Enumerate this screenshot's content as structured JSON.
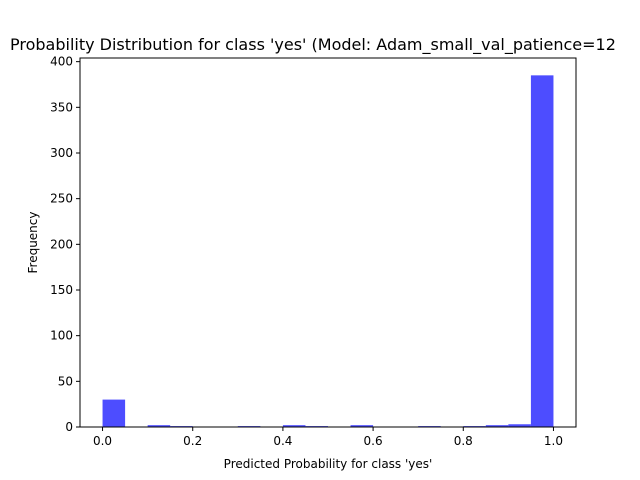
{
  "chart_data": {
    "type": "bar",
    "subtype": "histogram",
    "title": "Probability Distribution for class 'yes' (Model: Adam_small_val_patience=12",
    "xlabel": "Predicted Probability for class 'yes'",
    "ylabel": "Frequency",
    "xlim": [
      -0.05,
      1.05
    ],
    "ylim": [
      0,
      404
    ],
    "xticks": [
      0.0,
      0.2,
      0.4,
      0.6,
      0.8,
      1.0
    ],
    "xtick_labels": [
      "0.0",
      "0.2",
      "0.4",
      "0.6",
      "0.8",
      "1.0"
    ],
    "yticks": [
      0,
      50,
      100,
      150,
      200,
      250,
      300,
      350,
      400
    ],
    "ytick_labels": [
      "0",
      "50",
      "100",
      "150",
      "200",
      "250",
      "300",
      "350",
      "400"
    ],
    "bin_edges": [
      0.0,
      0.05,
      0.1,
      0.15,
      0.2,
      0.25,
      0.3,
      0.35,
      0.4,
      0.45,
      0.5,
      0.55,
      0.6,
      0.65,
      0.7,
      0.75,
      0.8,
      0.85,
      0.9,
      0.95,
      1.0
    ],
    "values": [
      30,
      0,
      2,
      1,
      0,
      0,
      1,
      0,
      2,
      1,
      0,
      2,
      0,
      0,
      1,
      0,
      1,
      2,
      3,
      385
    ],
    "bar_color": "#4d4dff",
    "grid": false,
    "legend": false
  }
}
